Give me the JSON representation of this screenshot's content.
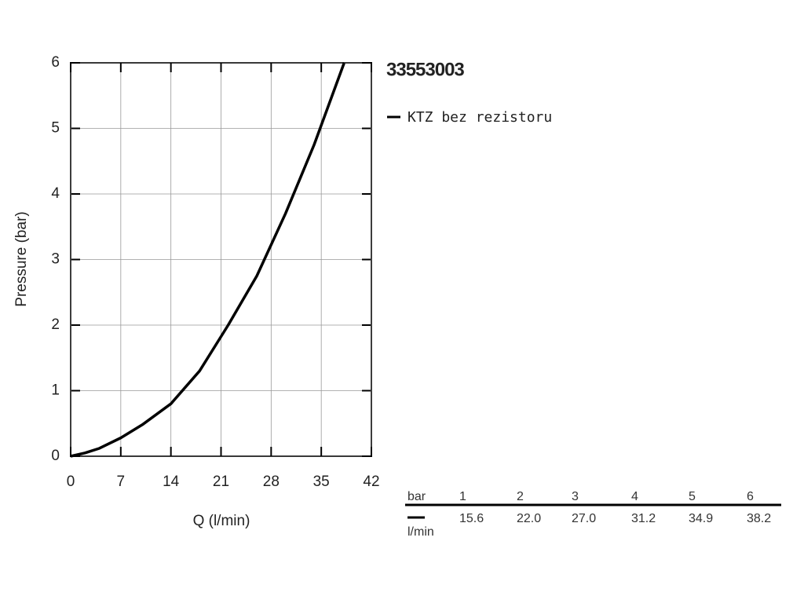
{
  "chart_data": {
    "type": "line",
    "title": "33553003",
    "x_label": "Q (l/min)",
    "y_label": "Pressure (bar)",
    "x": [
      0,
      2,
      4,
      7,
      10,
      14,
      18,
      22,
      26,
      30,
      34,
      38.2
    ],
    "series": [
      {
        "name": "KTZ bez rezistoru",
        "color": "#000000",
        "values": [
          0,
          0.05,
          0.12,
          0.28,
          0.48,
          0.8,
          1.3,
          2.0,
          2.75,
          3.7,
          4.75,
          6
        ]
      }
    ],
    "xlim": [
      0,
      42
    ],
    "ylim": [
      0,
      6
    ],
    "xticks": [
      0,
      7,
      14,
      21,
      28,
      35,
      42
    ],
    "yticks": [
      0,
      1,
      2,
      3,
      4,
      5,
      6
    ],
    "grid": true
  },
  "table": {
    "header": [
      "bar",
      "1",
      "2",
      "3",
      "4",
      "5",
      "6"
    ],
    "rows": [
      [
        "l/min",
        "15.6",
        "22.0",
        "27.0",
        "31.2",
        "34.9",
        "38.2"
      ]
    ]
  }
}
